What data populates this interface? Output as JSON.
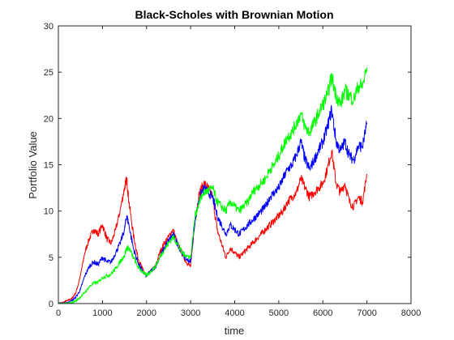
{
  "chart_data": {
    "type": "line",
    "title": "Black-Scholes with Brownian Motion",
    "xlabel": "time",
    "ylabel": "Portfolio Value",
    "xlim": [
      0,
      8000
    ],
    "ylim": [
      0,
      30
    ],
    "xticks": [
      0,
      1000,
      2000,
      3000,
      4000,
      5000,
      6000,
      7000,
      8000
    ],
    "yticks": [
      0,
      5,
      10,
      15,
      20,
      25,
      30
    ],
    "grid": false,
    "legend": "none",
    "series": [
      {
        "color": "#ff0000",
        "x": [
          0,
          100,
          200,
          300,
          400,
          500,
          600,
          700,
          800,
          900,
          1000,
          1100,
          1200,
          1300,
          1400,
          1500,
          1550,
          1600,
          1700,
          1800,
          1900,
          2000,
          2100,
          2200,
          2300,
          2400,
          2500,
          2600,
          2700,
          2800,
          2900,
          3000,
          3100,
          3200,
          3300,
          3400,
          3500,
          3600,
          3700,
          3800,
          3900,
          4000,
          4100,
          4200,
          4300,
          4400,
          4500,
          4600,
          4700,
          4800,
          4900,
          5000,
          5100,
          5200,
          5300,
          5400,
          5500,
          5600,
          5700,
          5800,
          5900,
          6000,
          6100,
          6200,
          6300,
          6400,
          6500,
          6600,
          6700,
          6800,
          6900,
          7000
        ],
        "y": [
          0.0,
          0.1,
          0.3,
          0.5,
          1.2,
          3.0,
          5.5,
          7.0,
          8.0,
          7.5,
          8.5,
          7.0,
          6.5,
          8.0,
          10.0,
          12.5,
          13.5,
          11.0,
          7.5,
          5.0,
          3.8,
          3.0,
          3.5,
          4.0,
          5.5,
          6.5,
          7.2,
          8.0,
          6.5,
          5.5,
          4.5,
          4.0,
          9.0,
          12.0,
          13.0,
          12.5,
          11.5,
          8.0,
          6.5,
          5.0,
          6.0,
          5.5,
          5.0,
          5.5,
          6.0,
          6.5,
          7.0,
          7.5,
          8.0,
          8.5,
          9.0,
          9.5,
          10.0,
          11.0,
          11.5,
          12.0,
          13.5,
          12.5,
          11.5,
          12.0,
          12.5,
          13.0,
          14.5,
          16.5,
          13.0,
          12.0,
          13.0,
          11.0,
          10.5,
          11.5,
          11.0,
          14.0
        ]
      },
      {
        "color": "#0000ff",
        "x": [
          0,
          100,
          200,
          300,
          400,
          500,
          600,
          700,
          800,
          900,
          1000,
          1100,
          1200,
          1300,
          1400,
          1500,
          1550,
          1600,
          1700,
          1800,
          1900,
          2000,
          2100,
          2200,
          2300,
          2400,
          2500,
          2600,
          2700,
          2800,
          2900,
          3000,
          3100,
          3200,
          3300,
          3400,
          3500,
          3600,
          3700,
          3800,
          3900,
          4000,
          4100,
          4200,
          4300,
          4400,
          4500,
          4600,
          4700,
          4800,
          4900,
          5000,
          5100,
          5200,
          5300,
          5400,
          5500,
          5600,
          5700,
          5800,
          5900,
          6000,
          6100,
          6200,
          6300,
          6400,
          6500,
          6600,
          6700,
          6800,
          6900,
          7000
        ],
        "y": [
          0.0,
          0.0,
          0.1,
          0.3,
          0.7,
          1.5,
          3.0,
          4.0,
          4.5,
          4.2,
          5.0,
          4.5,
          4.5,
          5.5,
          6.5,
          8.0,
          9.5,
          8.5,
          6.0,
          4.5,
          3.5,
          3.0,
          3.5,
          4.0,
          5.0,
          6.0,
          6.8,
          7.5,
          6.5,
          5.5,
          4.8,
          4.5,
          9.0,
          11.5,
          12.5,
          12.0,
          11.5,
          9.5,
          8.5,
          7.5,
          8.5,
          8.0,
          7.5,
          8.0,
          8.5,
          9.0,
          9.5,
          10.0,
          10.5,
          11.5,
          12.0,
          12.5,
          13.5,
          14.5,
          15.0,
          16.0,
          17.5,
          15.5,
          14.5,
          15.5,
          16.5,
          17.5,
          19.0,
          21.0,
          17.5,
          16.5,
          17.5,
          16.0,
          15.5,
          17.0,
          17.0,
          19.5
        ]
      },
      {
        "color": "#00ff00",
        "x": [
          0,
          100,
          200,
          300,
          400,
          500,
          600,
          700,
          800,
          900,
          1000,
          1100,
          1200,
          1300,
          1400,
          1500,
          1550,
          1600,
          1700,
          1800,
          1900,
          2000,
          2100,
          2200,
          2300,
          2400,
          2500,
          2600,
          2700,
          2800,
          2900,
          3000,
          3100,
          3200,
          3300,
          3400,
          3500,
          3600,
          3700,
          3800,
          3900,
          4000,
          4100,
          4200,
          4300,
          4400,
          4500,
          4600,
          4700,
          4800,
          4900,
          5000,
          5100,
          5200,
          5300,
          5400,
          5500,
          5600,
          5700,
          5800,
          5900,
          6000,
          6100,
          6200,
          6300,
          6400,
          6500,
          6600,
          6700,
          6800,
          6900,
          7000
        ],
        "y": [
          0.0,
          0.0,
          0.0,
          0.1,
          0.3,
          0.7,
          1.2,
          1.8,
          2.2,
          2.3,
          2.8,
          3.0,
          3.2,
          3.8,
          4.5,
          5.2,
          6.0,
          6.0,
          5.0,
          4.0,
          3.5,
          3.0,
          3.5,
          4.0,
          5.0,
          5.8,
          6.5,
          7.2,
          6.5,
          5.5,
          5.2,
          5.0,
          9.5,
          11.0,
          12.0,
          12.2,
          12.5,
          11.0,
          10.5,
          10.0,
          11.0,
          10.5,
          10.0,
          10.5,
          11.0,
          12.0,
          12.5,
          13.0,
          13.5,
          14.5,
          15.0,
          16.0,
          17.0,
          18.0,
          18.5,
          19.5,
          20.5,
          19.0,
          18.5,
          19.5,
          20.5,
          21.5,
          22.5,
          24.5,
          22.5,
          21.5,
          23.0,
          22.5,
          22.0,
          23.5,
          23.5,
          25.5
        ]
      }
    ]
  }
}
